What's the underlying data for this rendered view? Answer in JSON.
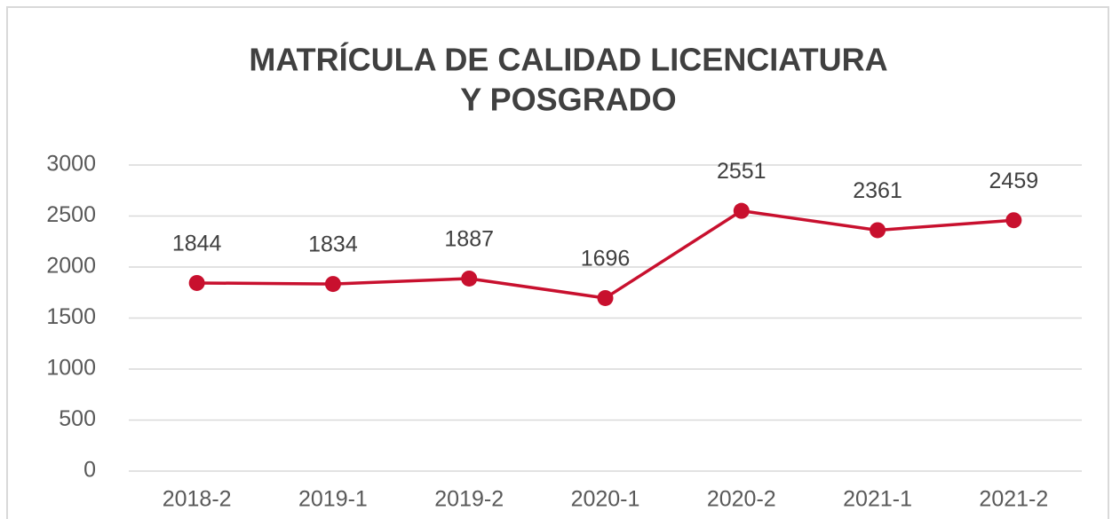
{
  "chart_data": {
    "type": "line",
    "title": [
      "MATRÍCULA DE CALIDAD LICENCIATURA",
      "Y POSGRADO"
    ],
    "categories": [
      "2018-2",
      "2019-1",
      "2019-2",
      "2020-1",
      "2020-2",
      "2021-1",
      "2021-2"
    ],
    "values": [
      1844,
      1834,
      1887,
      1696,
      2551,
      2361,
      2459
    ],
    "color": "#c8102e",
    "ylim": [
      0,
      3000
    ],
    "yticks": [
      0,
      500,
      1000,
      1500,
      2000,
      2500,
      3000
    ],
    "grid": true
  }
}
